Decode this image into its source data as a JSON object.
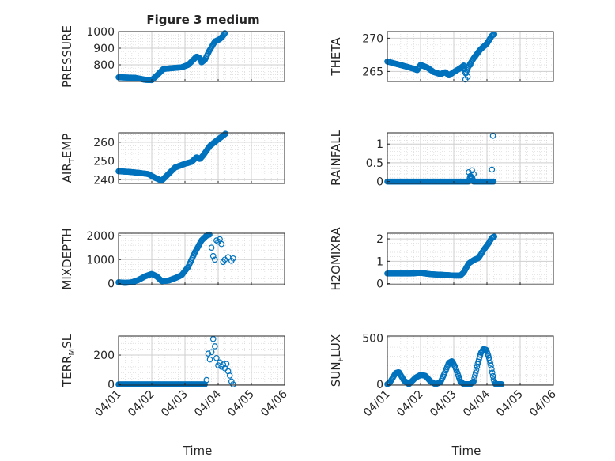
{
  "figure": {
    "title": "Figure 3 medium",
    "marker_color": "#0072BD"
  },
  "x_axis": {
    "label": "Time",
    "ticks": [
      "04/01",
      "04/02",
      "04/03",
      "04/04",
      "04/05",
      "04/06"
    ],
    "tick_days": [
      1,
      2,
      3,
      4,
      5,
      6
    ],
    "xlim": [
      1,
      6
    ]
  },
  "chart_data": [
    {
      "type": "scatter",
      "ylabel": {
        "main": "PRESSURE",
        "sub": ""
      },
      "yticks": [
        800,
        900,
        1000
      ],
      "ylim": [
        700,
        1000
      ],
      "grid": true,
      "anchors": [
        [
          1.0,
          725
        ],
        [
          1.5,
          722
        ],
        [
          1.8,
          710
        ],
        [
          2.0,
          708
        ],
        [
          2.15,
          735
        ],
        [
          2.35,
          775
        ],
        [
          2.6,
          780
        ],
        [
          2.9,
          785
        ],
        [
          3.1,
          800
        ],
        [
          3.25,
          830
        ],
        [
          3.35,
          850
        ],
        [
          3.45,
          840
        ],
        [
          3.5,
          815
        ],
        [
          3.6,
          830
        ],
        [
          3.72,
          880
        ],
        [
          3.9,
          940
        ],
        [
          4.05,
          955
        ],
        [
          4.15,
          975
        ],
        [
          4.2,
          990
        ]
      ]
    },
    {
      "type": "scatter",
      "ylabel": {
        "main": "THETA",
        "sub": ""
      },
      "yticks": [
        265,
        270
      ],
      "ylim": [
        263.5,
        271
      ],
      "grid": true,
      "anchors": [
        [
          1.0,
          266.5
        ],
        [
          1.3,
          266.1
        ],
        [
          1.6,
          265.7
        ],
        [
          1.8,
          265.4
        ],
        [
          1.9,
          265.2
        ],
        [
          2.0,
          266.0
        ],
        [
          2.2,
          265.6
        ],
        [
          2.4,
          264.9
        ],
        [
          2.6,
          264.6
        ],
        [
          2.75,
          264.9
        ],
        [
          2.85,
          264.4
        ],
        [
          3.0,
          264.9
        ],
        [
          3.2,
          265.5
        ],
        [
          3.3,
          265.9
        ],
        [
          3.35,
          264.6
        ],
        [
          3.45,
          265.8
        ],
        [
          3.6,
          267.0
        ],
        [
          3.8,
          268.3
        ],
        [
          4.0,
          269.2
        ],
        [
          4.15,
          270.4
        ],
        [
          4.22,
          270.6
        ]
      ],
      "extra": [
        [
          3.35,
          263.8
        ],
        [
          3.42,
          264.2
        ],
        [
          3.5,
          266.0
        ]
      ]
    },
    {
      "type": "scatter",
      "ylabel": {
        "main": "AIR",
        "sub": "T",
        "tail": "EMP"
      },
      "yticks": [
        240,
        250,
        260
      ],
      "ylim": [
        238,
        265
      ],
      "grid": true,
      "anchors": [
        [
          1.0,
          244.5
        ],
        [
          1.3,
          244.2
        ],
        [
          1.6,
          243.7
        ],
        [
          1.9,
          243.0
        ],
        [
          2.1,
          241.0
        ],
        [
          2.3,
          239.5
        ],
        [
          2.5,
          243.0
        ],
        [
          2.7,
          246.5
        ],
        [
          3.0,
          248.5
        ],
        [
          3.2,
          249.5
        ],
        [
          3.35,
          252.0
        ],
        [
          3.45,
          251.0
        ],
        [
          3.55,
          253.0
        ],
        [
          3.75,
          258.0
        ],
        [
          4.0,
          261.5
        ],
        [
          4.15,
          263.5
        ],
        [
          4.22,
          264.5
        ]
      ]
    },
    {
      "type": "scatter",
      "ylabel": {
        "main": "RAINFALL",
        "sub": ""
      },
      "yticks": [
        0,
        0.5,
        1
      ],
      "ylim": [
        -0.05,
        1.3
      ],
      "grid": true,
      "anchors": [
        [
          1.0,
          0
        ],
        [
          3.45,
          0
        ],
        [
          3.5,
          0.15
        ],
        [
          3.55,
          0.1
        ],
        [
          3.6,
          0
        ],
        [
          4.2,
          0
        ]
      ],
      "extra": [
        [
          3.45,
          0.25
        ],
        [
          3.55,
          0.3
        ],
        [
          3.6,
          0.2
        ],
        [
          4.18,
          1.22
        ],
        [
          4.15,
          0.32
        ]
      ]
    },
    {
      "type": "scatter",
      "ylabel": {
        "main": "MIXDEPTH",
        "sub": ""
      },
      "yticks": [
        0,
        1000,
        2000
      ],
      "ylim": [
        -50,
        2100
      ],
      "grid": true,
      "anchors": [
        [
          1.0,
          50
        ],
        [
          1.2,
          30
        ],
        [
          1.4,
          50
        ],
        [
          1.6,
          150
        ],
        [
          1.8,
          300
        ],
        [
          2.0,
          400
        ],
        [
          2.15,
          300
        ],
        [
          2.3,
          100
        ],
        [
          2.5,
          120
        ],
        [
          2.75,
          250
        ],
        [
          2.9,
          350
        ],
        [
          3.1,
          700
        ],
        [
          3.3,
          1300
        ],
        [
          3.5,
          1800
        ],
        [
          3.65,
          2000
        ],
        [
          3.75,
          2050
        ]
      ],
      "extra": [
        [
          3.8,
          1500
        ],
        [
          3.85,
          1150
        ],
        [
          3.9,
          1000
        ],
        [
          3.95,
          1800
        ],
        [
          4.0,
          1750
        ],
        [
          4.05,
          1850
        ],
        [
          4.1,
          1650
        ],
        [
          4.15,
          900
        ],
        [
          4.2,
          1000
        ],
        [
          4.3,
          1100
        ],
        [
          4.4,
          950
        ],
        [
          4.45,
          1050
        ]
      ]
    },
    {
      "type": "scatter",
      "ylabel": {
        "main": "H2OMIXRA",
        "sub": ""
      },
      "yticks": [
        0,
        1,
        2
      ],
      "ylim": [
        -0.05,
        2.25
      ],
      "grid": true,
      "anchors": [
        [
          1.0,
          0.45
        ],
        [
          1.7,
          0.45
        ],
        [
          2.0,
          0.48
        ],
        [
          2.3,
          0.42
        ],
        [
          2.8,
          0.38
        ],
        [
          3.0,
          0.36
        ],
        [
          3.2,
          0.36
        ],
        [
          3.3,
          0.5
        ],
        [
          3.45,
          0.9
        ],
        [
          3.6,
          1.05
        ],
        [
          3.75,
          1.15
        ],
        [
          3.9,
          1.5
        ],
        [
          4.05,
          1.8
        ],
        [
          4.15,
          2.05
        ],
        [
          4.22,
          2.1
        ]
      ]
    },
    {
      "type": "scatter",
      "ylabel": {
        "main": "TERR",
        "sub": "M",
        "tail": "SL"
      },
      "yticks": [
        0,
        200
      ],
      "ylim": [
        -5,
        330
      ],
      "grid": true,
      "anchors": [
        [
          1.0,
          0
        ],
        [
          3.55,
          0
        ],
        [
          3.6,
          0
        ]
      ],
      "extra": [
        [
          3.65,
          30
        ],
        [
          3.7,
          210
        ],
        [
          3.75,
          170
        ],
        [
          3.8,
          220
        ],
        [
          3.85,
          310
        ],
        [
          3.9,
          260
        ],
        [
          3.95,
          180
        ],
        [
          4.0,
          130
        ],
        [
          4.05,
          150
        ],
        [
          4.1,
          120
        ],
        [
          4.15,
          135
        ],
        [
          4.2,
          110
        ],
        [
          4.25,
          140
        ],
        [
          4.3,
          90
        ],
        [
          4.35,
          60
        ],
        [
          4.4,
          20
        ],
        [
          4.45,
          0
        ]
      ]
    },
    {
      "type": "scatter",
      "ylabel": {
        "main": "SUN",
        "sub": "F",
        "tail": "LUX"
      },
      "yticks": [
        0,
        500
      ],
      "ylim": [
        -10,
        520
      ],
      "grid": true,
      "anchors": [
        [
          1.0,
          0
        ],
        [
          1.08,
          20
        ],
        [
          1.25,
          120
        ],
        [
          1.35,
          130
        ],
        [
          1.5,
          40
        ],
        [
          1.65,
          0
        ],
        [
          1.85,
          70
        ],
        [
          2.0,
          100
        ],
        [
          2.15,
          90
        ],
        [
          2.3,
          30
        ],
        [
          2.45,
          0
        ],
        [
          2.6,
          20
        ],
        [
          2.75,
          140
        ],
        [
          2.85,
          230
        ],
        [
          2.95,
          250
        ],
        [
          3.05,
          180
        ],
        [
          3.2,
          30
        ],
        [
          3.3,
          0
        ],
        [
          3.5,
          0
        ],
        [
          3.6,
          30
        ],
        [
          3.72,
          220
        ],
        [
          3.82,
          340
        ],
        [
          3.9,
          380
        ],
        [
          3.98,
          370
        ],
        [
          4.05,
          300
        ],
        [
          4.12,
          200
        ],
        [
          4.2,
          50
        ],
        [
          4.25,
          0
        ],
        [
          4.45,
          0
        ]
      ]
    }
  ]
}
